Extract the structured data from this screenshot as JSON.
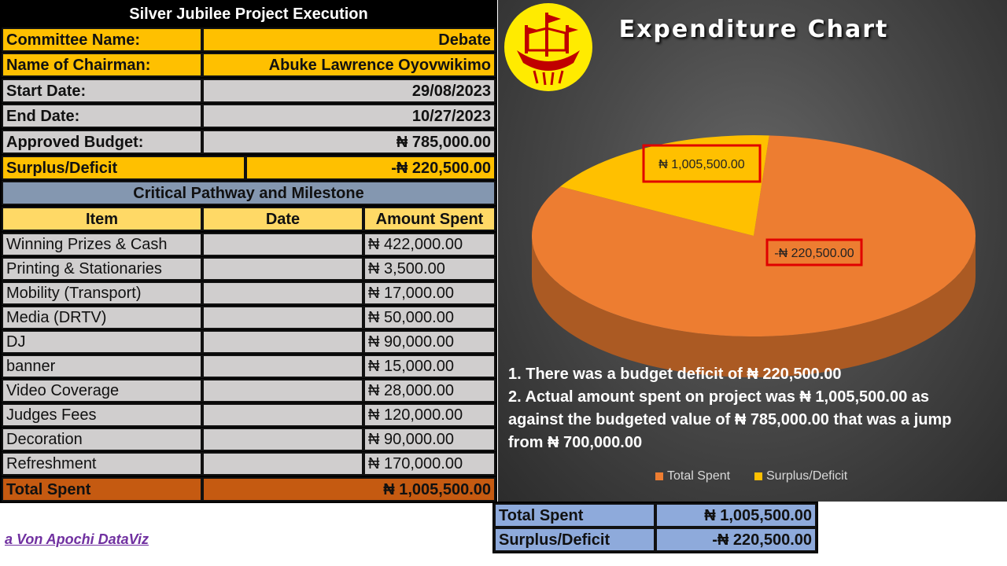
{
  "project": {
    "title": "Silver Jubilee Project Execution",
    "committee_label": "Committee Name:",
    "committee_value": "Debate",
    "chairman_label": "Name of Chairman:",
    "chairman_value": "Abuke Lawrence Oyovwikimo",
    "start_label": "Start Date:",
    "start_value": "29/08/2023",
    "end_label": "End Date:",
    "end_value": "10/27/2023",
    "budget_label": "Approved Budget:",
    "budget_value": "₦ 785,000.00",
    "surplus_label": "Surplus/Deficit",
    "surplus_value": "-₦ 220,500.00"
  },
  "milestones": {
    "title": "Critical Pathway and Milestone",
    "headers": [
      "Item",
      "Date",
      "Amount Spent"
    ],
    "rows": [
      {
        "item": "Winning Prizes & Cash",
        "date": "",
        "amount": "₦ 422,000.00"
      },
      {
        "item": "Printing & Stationaries",
        "date": "",
        "amount": "₦ 3,500.00"
      },
      {
        "item": "Mobility (Transport)",
        "date": "",
        "amount": "₦ 17,000.00"
      },
      {
        "item": "Media (DRTV)",
        "date": "",
        "amount": "₦ 50,000.00"
      },
      {
        "item": "DJ",
        "date": "",
        "amount": "₦ 90,000.00"
      },
      {
        "item": "banner",
        "date": "",
        "amount": "₦ 15,000.00"
      },
      {
        "item": "Video Coverage",
        "date": "",
        "amount": "₦ 28,000.00"
      },
      {
        "item": "Judges Fees",
        "date": "",
        "amount": "₦ 120,000.00"
      },
      {
        "item": "Decoration",
        "date": "",
        "amount": "₦ 90,000.00"
      },
      {
        "item": "Refreshment",
        "date": "",
        "amount": "₦ 170,000.00"
      }
    ],
    "total_label": "Total Spent",
    "total_value": "₦ 1,005,500.00"
  },
  "summary": {
    "total_label": "Total Spent",
    "total_value": "₦ 1,005,500.00",
    "surplus_label": "Surplus/Deficit",
    "surplus_value": "-₦ 220,500.00"
  },
  "notes": {
    "line1": "1. There was a budget  deficit of ₦ 220,500.00",
    "line2": "2. Actual amount spent on project was  ₦ 1,005,500.00 as",
    "line3": "against the budgeted value of  ₦ 785,000.00 that was a jump",
    "line4": "from ₦ 700,000.00"
  },
  "credit": "a Von Apochi DataViz",
  "chart_data": {
    "type": "pie",
    "title": "Expenditure Chart",
    "slices": [
      {
        "name": "Total Spent",
        "value": 1005500,
        "label": "₦ 1,005,500.00",
        "color": "#ed7d31"
      },
      {
        "name": "Surplus/Deficit",
        "value": 220500,
        "label": "-₦ 220,500.00",
        "color": "#ffc000"
      }
    ],
    "legend_position": "bottom"
  },
  "colors": {
    "header_gold": "#ffc000",
    "row_grey": "#d0cece",
    "section_slate": "#8497b0",
    "total_rust": "#c55a11",
    "summary_blue": "#8eaadb",
    "credit_purple": "#7030a0"
  }
}
